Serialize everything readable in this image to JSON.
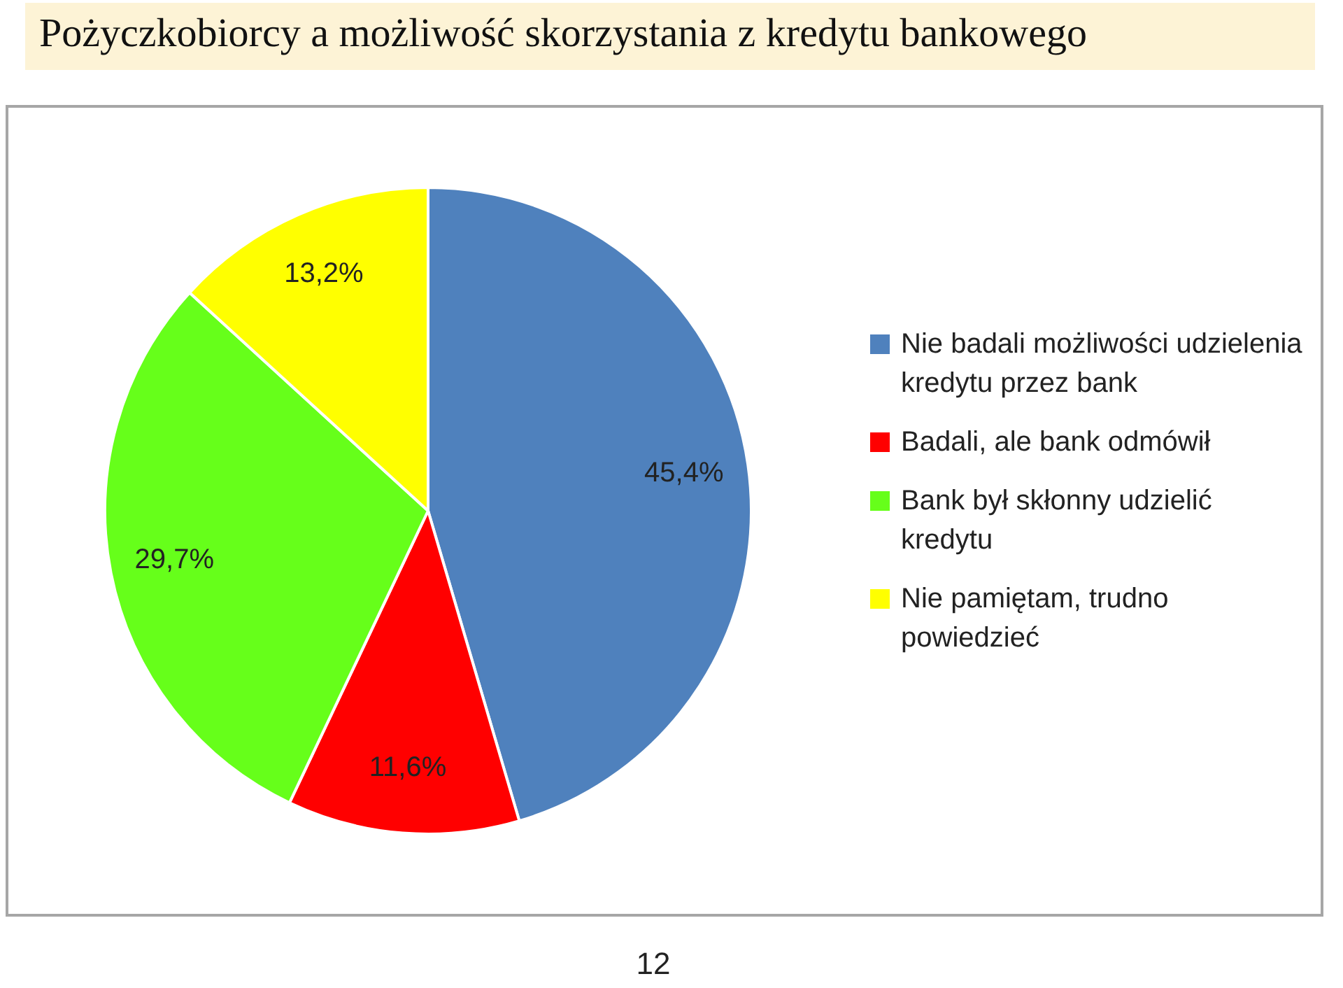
{
  "chart_data": {
    "type": "pie",
    "title": "Pożyczkobiorcy a możliwość skorzystania z kredytu bankowego",
    "categories": [
      "Nie badali możliwości udzielenia kredytu przez bank",
      "Badali, ale bank odmówił",
      "Bank był skłonny udzielić kredytu",
      "Nie pamiętam, trudno powiedzieć"
    ],
    "values": [
      45.4,
      11.6,
      29.7,
      13.2
    ],
    "value_labels": [
      "45,4%",
      "11,6%",
      "29,7%",
      "13,2%"
    ],
    "colors": [
      "#4f81bd",
      "#ff0000",
      "#66ff1a",
      "#ffff00"
    ],
    "legend": "right",
    "annotations": [
      "12"
    ]
  }
}
